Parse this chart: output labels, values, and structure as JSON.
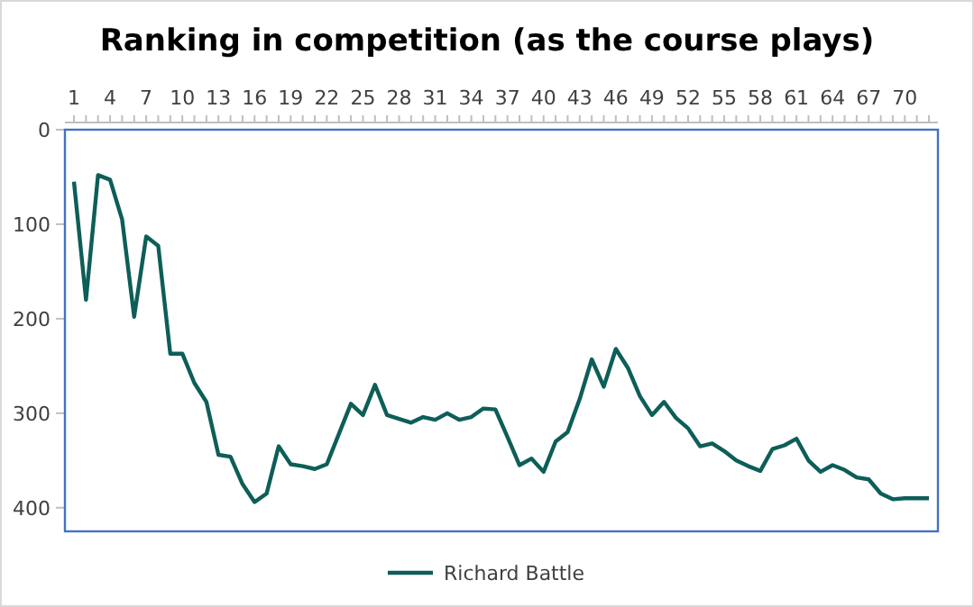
{
  "chart_data": {
    "type": "line",
    "title": "Ranking in competition (as the course plays)",
    "categories": [
      "1",
      null,
      null,
      "4",
      null,
      null,
      "7",
      null,
      null,
      "10",
      null,
      null,
      "13",
      null,
      null,
      "16",
      null,
      null,
      "19",
      null,
      null,
      "22",
      null,
      null,
      "25",
      null,
      null,
      "28",
      null,
      null,
      "31",
      null,
      null,
      "34",
      null,
      null,
      "37",
      null,
      null,
      "40",
      null,
      null,
      "43",
      null,
      null,
      "46",
      null,
      null,
      "49",
      null,
      null,
      "52",
      null,
      null,
      "55",
      null,
      null,
      "58",
      null,
      null,
      "61",
      null,
      null,
      "64",
      null,
      null,
      "67",
      null,
      null,
      "70",
      null,
      null
    ],
    "series": [
      {
        "name": "Richard Battle",
        "color": "#0e5e58",
        "values": [
          55,
          180,
          48,
          53,
          95,
          198,
          113,
          123,
          237,
          237,
          268,
          288,
          344,
          346,
          375,
          394,
          385,
          335,
          354,
          356,
          359,
          354,
          322,
          290,
          302,
          270,
          302,
          306,
          310,
          304,
          307,
          300,
          307,
          304,
          295,
          296,
          325,
          355,
          348,
          362,
          330,
          320,
          285,
          243,
          272,
          232,
          252,
          282,
          302,
          288,
          305,
          316,
          335,
          332,
          340,
          350,
          356,
          361,
          338,
          334,
          327,
          350,
          362,
          355,
          360,
          368,
          370,
          385,
          391,
          390,
          390,
          390
        ]
      }
    ],
    "ylim": [
      425,
      0
    ],
    "yticks": [
      0,
      100,
      200,
      300,
      400
    ],
    "grid": false,
    "legend": "bottom",
    "marker": "none",
    "line_style": "solid"
  }
}
